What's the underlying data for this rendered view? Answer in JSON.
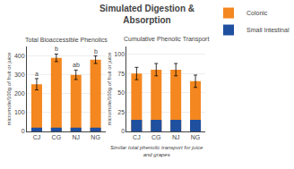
{
  "title": "Simulated Digestion &\nAbsorption",
  "chart_data": [
    {
      "type": "bar",
      "title": "Total Bioaccessible Phenolics",
      "ylabel": "micromole/100g of fruit or juice",
      "categories": [
        "CJ",
        "CG",
        "NJ",
        "NG"
      ],
      "series": [
        {
          "name": "Colonic",
          "color": "#F4871F",
          "values": [
            250,
            390,
            300,
            380
          ],
          "errors": [
            30,
            20,
            25,
            20
          ]
        },
        {
          "name": "Small Intestinal",
          "color": "#1F4F9F",
          "values": [
            20,
            20,
            20,
            20
          ]
        }
      ],
      "stacked": false,
      "ylim": [
        0,
        450
      ],
      "yticks": [
        0,
        100,
        200,
        300,
        400
      ],
      "grid": true,
      "annotations": [
        {
          "category": "CJ",
          "text": "a"
        },
        {
          "category": "CG",
          "text": "b"
        },
        {
          "category": "NJ",
          "text": "ab"
        },
        {
          "category": "NG",
          "text": "b"
        }
      ]
    },
    {
      "type": "bar",
      "title": "Cumulative Phenolic Transport",
      "subtitle": "Similar total phenolic transport for juice\nand grapes",
      "ylabel": "micromole/100g of fruit or juice",
      "categories": [
        "CJ",
        "CG",
        "NJ",
        "NG"
      ],
      "series": [
        {
          "name": "Colonic",
          "color": "#F4871F",
          "values": [
            75,
            80,
            80,
            65
          ],
          "errors": [
            8,
            8,
            8,
            8
          ]
        },
        {
          "name": "Small Intestinal",
          "color": "#1F4F9F",
          "values": [
            15,
            15,
            15,
            15
          ]
        }
      ],
      "stacked": false,
      "ylim": [
        0,
        110
      ],
      "yticks": [
        0,
        25,
        50,
        75,
        100
      ],
      "grid": true,
      "legend": "upper right"
    }
  ]
}
